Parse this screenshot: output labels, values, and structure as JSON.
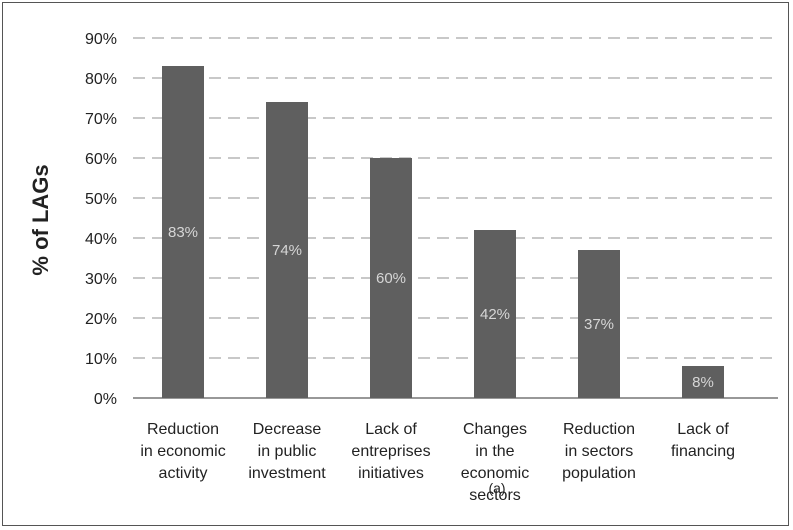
{
  "chart_data": {
    "type": "bar",
    "categories": [
      [
        "Reduction",
        "in economic",
        "activity"
      ],
      [
        "Decrease",
        "in public",
        "investment"
      ],
      [
        "Lack of",
        "entreprises",
        "initiatives"
      ],
      [
        "Changes",
        "in the",
        "economic",
        "sectors"
      ],
      [
        "Reduction",
        "in sectors",
        "population"
      ],
      [
        "Lack of",
        "financing"
      ]
    ],
    "values": [
      83,
      74,
      60,
      42,
      37,
      8
    ],
    "value_labels": [
      "83%",
      "74%",
      "60%",
      "42%",
      "37%",
      "8%"
    ],
    "ylabel": "% of LAGs",
    "caption": "(a)",
    "ylim": [
      0,
      90
    ],
    "yticks": [
      0,
      10,
      20,
      30,
      40,
      50,
      60,
      70,
      80,
      90
    ],
    "ytick_labels": [
      "0%",
      "10%",
      "20%",
      "30%",
      "40%",
      "50%",
      "60%",
      "70%",
      "80%",
      "90%"
    ],
    "grid": "dashed horizontal",
    "bar_color": "#5f5f5f",
    "grid_color": "#b5b5b5",
    "value_label_color": "#d6d6d6"
  }
}
